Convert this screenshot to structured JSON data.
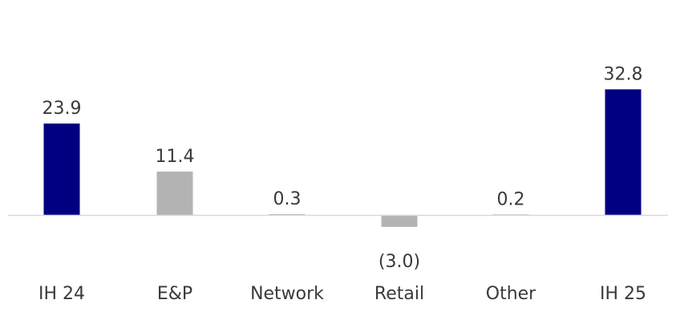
{
  "chart_data": {
    "type": "bar",
    "categories": [
      "IH 24",
      "E&P",
      "Network",
      "Retail",
      "Other",
      "IH 25"
    ],
    "values": [
      23.9,
      11.4,
      0.3,
      -3.0,
      0.2,
      32.8
    ],
    "value_labels": [
      "23.9",
      "11.4",
      "0.3",
      "(3.0)",
      "0.2",
      "32.8"
    ],
    "bar_colors": [
      "#000080",
      "#b3b3b3",
      "#b3b3b3",
      "#b3b3b3",
      "#b3b3b3",
      "#000080"
    ],
    "axis_color": "#d9d9d9",
    "title": "",
    "xlabel": "",
    "ylabel": "",
    "ylim": [
      -3.0,
      32.8
    ],
    "grid": false,
    "legend": "none"
  }
}
